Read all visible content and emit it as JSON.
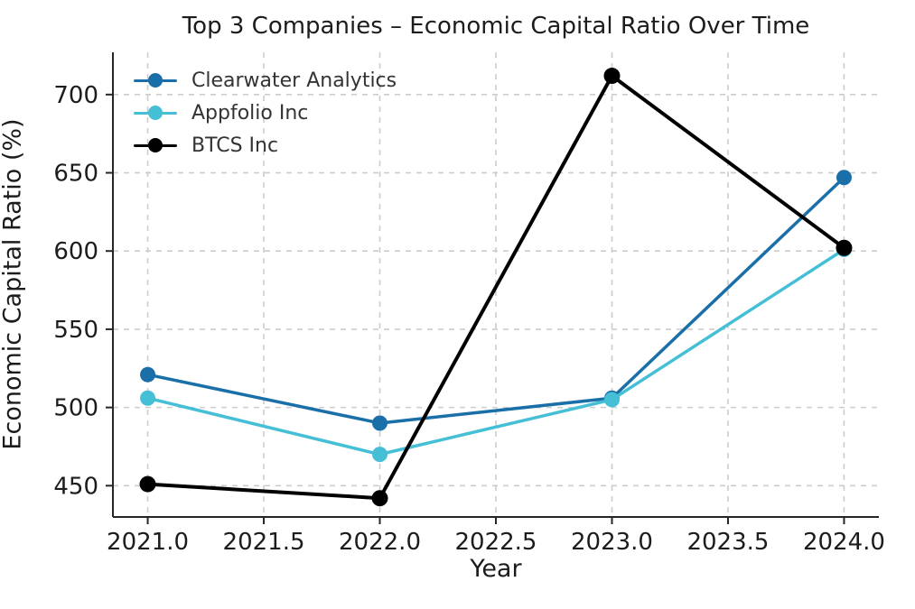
{
  "chart_data": {
    "type": "line",
    "title": "Top 3 Companies – Economic Capital Ratio Over Time",
    "xlabel": "Year",
    "ylabel": "Economic Capital Ratio (%)",
    "x": [
      2021,
      2022,
      2023,
      2024
    ],
    "series": [
      {
        "name": "Clearwater Analytics",
        "color": "#1a6fa9",
        "values": [
          521,
          490,
          506,
          647
        ]
      },
      {
        "name": "Appfolio Inc",
        "color": "#44bfd5",
        "values": [
          506,
          470,
          505,
          601
        ]
      },
      {
        "name": "BTCS Inc",
        "color": "#000000",
        "values": [
          451,
          442,
          712,
          602
        ]
      }
    ],
    "xticks": {
      "values": [
        2021.0,
        2021.5,
        2022.0,
        2022.5,
        2023.0,
        2023.5,
        2024.0
      ],
      "labels": [
        "2021.0",
        "2021.5",
        "2022.0",
        "2022.5",
        "2023.0",
        "2023.5",
        "2024.0"
      ]
    },
    "yticks": {
      "values": [
        450,
        500,
        550,
        600,
        650,
        700
      ],
      "labels": [
        "450",
        "500",
        "550",
        "600",
        "650",
        "700"
      ]
    },
    "xlim": [
      2020.85,
      2024.15
    ],
    "ylim": [
      430,
      727
    ],
    "grid": true,
    "grid_style": "dashed",
    "grid_color": "#cccccc",
    "axis_color": "#262626",
    "legend_position": "upper left",
    "legend_frame": false
  }
}
